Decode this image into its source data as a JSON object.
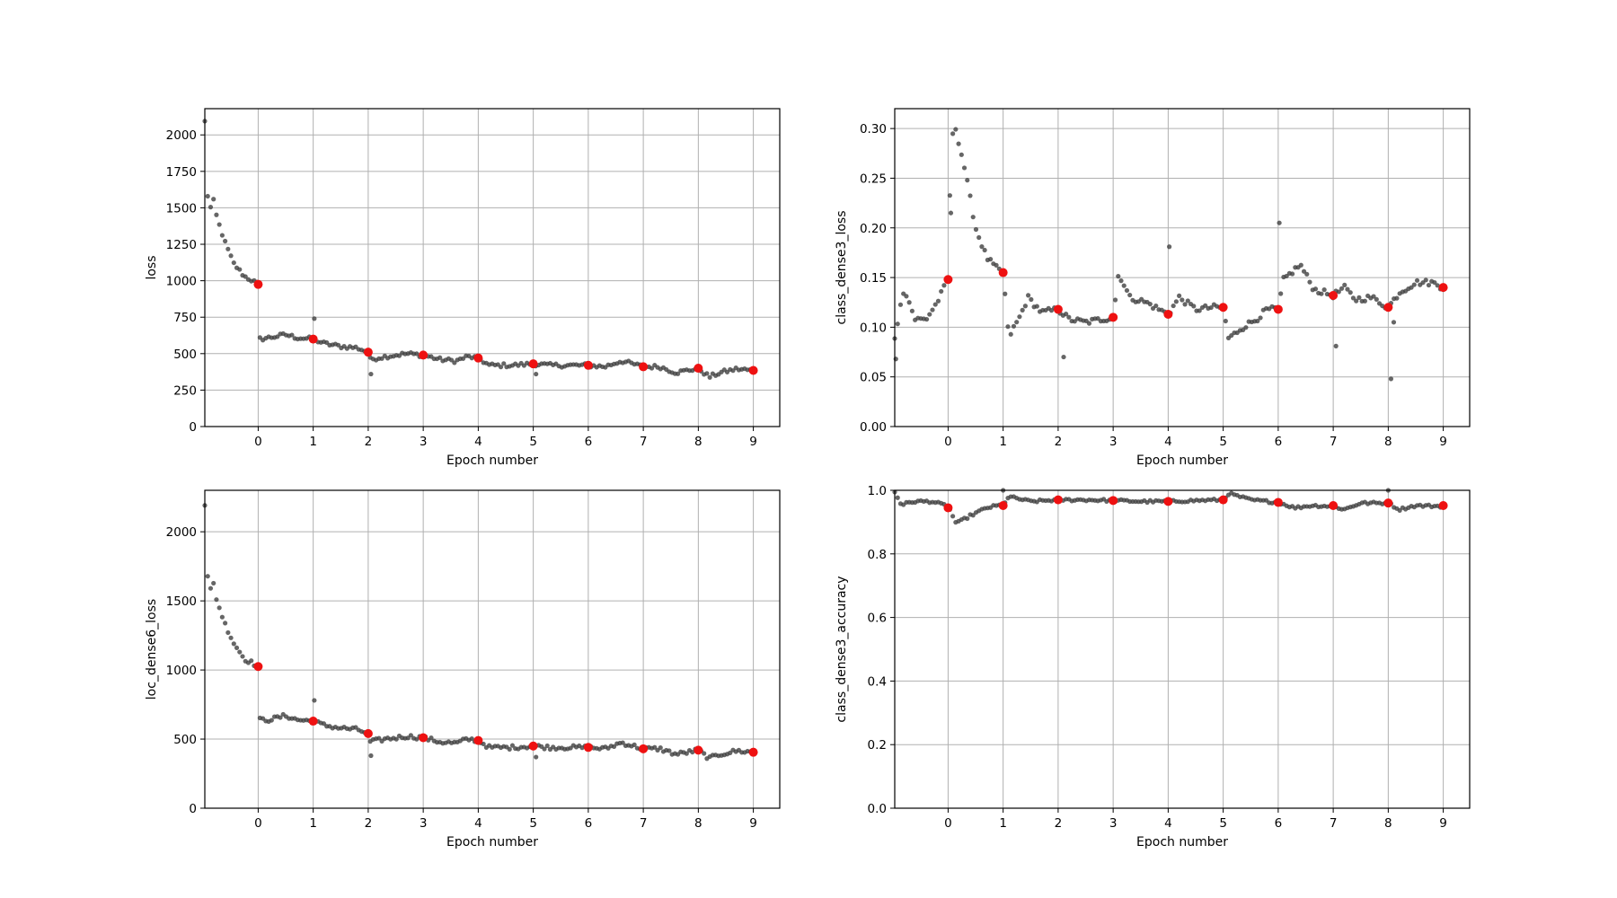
{
  "chart_data": [
    {
      "type": "scatter",
      "ylabel": "loss",
      "xlabel": "Epoch number",
      "xlim": [
        -0.97,
        9.48
      ],
      "ylim": [
        0,
        2180
      ],
      "xticks": [
        0,
        1,
        2,
        3,
        4,
        5,
        6,
        7,
        8,
        9
      ],
      "yticks": [
        0,
        250,
        500,
        750,
        1000,
        1250,
        1500,
        1750,
        2000
      ],
      "ytick_labels": [
        "0",
        "250",
        "500",
        "750",
        "1000",
        "1250",
        "1500",
        "1750",
        "2000"
      ],
      "grid": true,
      "series": [
        {
          "role": "per-batch values",
          "color": "#404040",
          "knots": [
            [
              -0.97,
              2090
            ],
            [
              -0.9,
              1420
            ],
            [
              -0.83,
              1580
            ],
            [
              -0.75,
              1430
            ],
            [
              -0.6,
              1260
            ],
            [
              -0.45,
              1120
            ],
            [
              -0.25,
              1030
            ],
            [
              -0.1,
              1000
            ],
            [
              0,
              975
            ],
            [
              0.02,
              600
            ],
            [
              0.2,
              610
            ],
            [
              0.5,
              630
            ],
            [
              0.7,
              610
            ],
            [
              1.0,
              600
            ],
            [
              1.2,
              570
            ],
            [
              1.5,
              550
            ],
            [
              1.8,
              540
            ],
            [
              2.0,
              510
            ],
            [
              2.02,
              460
            ],
            [
              2.3,
              480
            ],
            [
              2.7,
              500
            ],
            [
              3.0,
              490
            ],
            [
              3.3,
              460
            ],
            [
              3.6,
              450
            ],
            [
              3.8,
              480
            ],
            [
              4.0,
              470
            ],
            [
              4.2,
              420
            ],
            [
              4.6,
              420
            ],
            [
              5.0,
              430
            ],
            [
              5.3,
              420
            ],
            [
              5.6,
              420
            ],
            [
              6.0,
              420
            ],
            [
              6.3,
              410
            ],
            [
              6.6,
              450
            ],
            [
              7.0,
              410
            ],
            [
              7.3,
              410
            ],
            [
              7.6,
              370
            ],
            [
              8.0,
              400
            ],
            [
              8.2,
              340
            ],
            [
              8.4,
              370
            ],
            [
              8.7,
              395
            ],
            [
              9.0,
              385
            ]
          ],
          "noise": 14,
          "outliers": [
            [
              1.02,
              740
            ],
            [
              2.05,
              360
            ],
            [
              5.05,
              360
            ]
          ]
        },
        {
          "role": "epoch-end values",
          "color": "#ee1111",
          "x": [
            0,
            1,
            2,
            3,
            4,
            5,
            6,
            7,
            8,
            9
          ],
          "y": [
            975,
            600,
            510,
            490,
            470,
            430,
            420,
            410,
            400,
            385
          ]
        }
      ]
    },
    {
      "type": "scatter",
      "ylabel": "class_dense3_loss",
      "xlabel": "Epoch number",
      "xlim": [
        -0.97,
        9.48
      ],
      "ylim": [
        0,
        0.32
      ],
      "xticks": [
        0,
        1,
        2,
        3,
        4,
        5,
        6,
        7,
        8,
        9
      ],
      "yticks": [
        0,
        0.05,
        0.1,
        0.15,
        0.2,
        0.25,
        0.3
      ],
      "ytick_labels": [
        "0.00",
        "0.05",
        "0.10",
        "0.15",
        "0.20",
        "0.25",
        "0.30"
      ],
      "grid": true,
      "series": [
        {
          "role": "per-batch values",
          "color": "#404040",
          "knots": [
            [
              -0.97,
              0.09
            ],
            [
              -0.8,
              0.14
            ],
            [
              -0.6,
              0.108
            ],
            [
              -0.4,
              0.108
            ],
            [
              -0.2,
              0.125
            ],
            [
              0.0,
              0.148
            ],
            [
              0.05,
              0.28
            ],
            [
              0.12,
              0.305
            ],
            [
              0.3,
              0.26
            ],
            [
              0.5,
              0.2
            ],
            [
              0.7,
              0.17
            ],
            [
              0.9,
              0.158
            ],
            [
              1.0,
              0.155
            ],
            [
              1.1,
              0.09
            ],
            [
              1.3,
              0.11
            ],
            [
              1.45,
              0.13
            ],
            [
              1.7,
              0.115
            ],
            [
              2.0,
              0.118
            ],
            [
              2.2,
              0.108
            ],
            [
              2.5,
              0.105
            ],
            [
              2.8,
              0.108
            ],
            [
              3.0,
              0.11
            ],
            [
              3.1,
              0.155
            ],
            [
              3.3,
              0.13
            ],
            [
              3.6,
              0.125
            ],
            [
              4.0,
              0.113
            ],
            [
              4.2,
              0.13
            ],
            [
              4.5,
              0.118
            ],
            [
              4.8,
              0.12
            ],
            [
              5.0,
              0.12
            ],
            [
              5.1,
              0.088
            ],
            [
              5.3,
              0.098
            ],
            [
              5.6,
              0.108
            ],
            [
              5.8,
              0.118
            ],
            [
              6.0,
              0.118
            ],
            [
              6.1,
              0.148
            ],
            [
              6.4,
              0.163
            ],
            [
              6.65,
              0.138
            ],
            [
              7.0,
              0.132
            ],
            [
              7.2,
              0.14
            ],
            [
              7.4,
              0.128
            ],
            [
              7.7,
              0.13
            ],
            [
              8.0,
              0.12
            ],
            [
              8.2,
              0.135
            ],
            [
              8.5,
              0.145
            ],
            [
              8.8,
              0.145
            ],
            [
              9.0,
              0.14
            ]
          ],
          "noise": 0.003,
          "outliers": [
            [
              -0.95,
              0.068
            ],
            [
              0.05,
              0.215
            ],
            [
              2.1,
              0.07
            ],
            [
              4.02,
              0.181
            ],
            [
              6.02,
              0.205
            ],
            [
              7.05,
              0.081
            ],
            [
              8.05,
              0.048
            ],
            [
              8.1,
              0.105
            ]
          ]
        },
        {
          "role": "epoch-end values",
          "color": "#ee1111",
          "x": [
            0,
            1,
            2,
            3,
            4,
            5,
            6,
            7,
            8,
            9
          ],
          "y": [
            0.148,
            0.155,
            0.118,
            0.11,
            0.113,
            0.12,
            0.118,
            0.132,
            0.12,
            0.14
          ]
        }
      ]
    },
    {
      "type": "scatter",
      "ylabel": "loc_dense6_loss",
      "xlabel": "Epoch number",
      "xlim": [
        -0.97,
        9.48
      ],
      "ylim": [
        0,
        2300
      ],
      "xticks": [
        0,
        1,
        2,
        3,
        4,
        5,
        6,
        7,
        8,
        9
      ],
      "yticks": [
        0,
        500,
        1000,
        1500,
        2000
      ],
      "ytick_labels": [
        "0",
        "500",
        "1000",
        "1500",
        "2000"
      ],
      "grid": true,
      "series": [
        {
          "role": "per-batch values",
          "color": "#404040",
          "knots": [
            [
              -0.97,
              2200
            ],
            [
              -0.9,
              1500
            ],
            [
              -0.83,
              1660
            ],
            [
              -0.75,
              1500
            ],
            [
              -0.6,
              1330
            ],
            [
              -0.45,
              1200
            ],
            [
              -0.25,
              1080
            ],
            [
              -0.1,
              1050
            ],
            [
              0,
              1025
            ],
            [
              0.02,
              640
            ],
            [
              0.2,
              640
            ],
            [
              0.5,
              670
            ],
            [
              0.7,
              640
            ],
            [
              1.0,
              630
            ],
            [
              1.2,
              600
            ],
            [
              1.5,
              580
            ],
            [
              1.8,
              570
            ],
            [
              2.0,
              540
            ],
            [
              2.02,
              480
            ],
            [
              2.3,
              500
            ],
            [
              2.7,
              520
            ],
            [
              3.0,
              510
            ],
            [
              3.3,
              480
            ],
            [
              3.6,
              470
            ],
            [
              3.8,
              500
            ],
            [
              4.0,
              490
            ],
            [
              4.2,
              440
            ],
            [
              4.6,
              440
            ],
            [
              5.0,
              450
            ],
            [
              5.3,
              440
            ],
            [
              5.6,
              440
            ],
            [
              6.0,
              440
            ],
            [
              6.3,
              430
            ],
            [
              6.6,
              475
            ],
            [
              7.0,
              430
            ],
            [
              7.3,
              430
            ],
            [
              7.6,
              390
            ],
            [
              8.0,
              420
            ],
            [
              8.2,
              360
            ],
            [
              8.4,
              390
            ],
            [
              8.7,
              415
            ],
            [
              9.0,
              405
            ]
          ],
          "noise": 15,
          "outliers": [
            [
              1.02,
              780
            ],
            [
              2.05,
              380
            ],
            [
              5.05,
              370
            ]
          ]
        },
        {
          "role": "epoch-end values",
          "color": "#ee1111",
          "x": [
            0,
            1,
            2,
            3,
            4,
            5,
            6,
            7,
            8,
            9
          ],
          "y": [
            1025,
            630,
            540,
            510,
            490,
            450,
            440,
            430,
            420,
            405
          ]
        }
      ]
    },
    {
      "type": "scatter",
      "ylabel": "class_dense3_accuracy",
      "xlabel": "Epoch number",
      "xlim": [
        -0.97,
        9.48
      ],
      "ylim": [
        0,
        1.0
      ],
      "xticks": [
        0,
        1,
        2,
        3,
        4,
        5,
        6,
        7,
        8,
        9
      ],
      "yticks": [
        0,
        0.2,
        0.4,
        0.6,
        0.8,
        1.0
      ],
      "ytick_labels": [
        "0.0",
        "0.2",
        "0.4",
        "0.6",
        "0.8",
        "1.0"
      ],
      "grid": true,
      "series": [
        {
          "role": "per-batch values",
          "color": "#404040",
          "knots": [
            [
              -0.97,
              0.995
            ],
            [
              -0.85,
              0.955
            ],
            [
              -0.6,
              0.965
            ],
            [
              -0.3,
              0.965
            ],
            [
              0.0,
              0.95
            ],
            [
              0.15,
              0.895
            ],
            [
              0.4,
              0.92
            ],
            [
              0.7,
              0.945
            ],
            [
              1.0,
              0.955
            ],
            [
              1.1,
              0.98
            ],
            [
              1.5,
              0.965
            ],
            [
              2.0,
              0.97
            ],
            [
              2.5,
              0.97
            ],
            [
              3.0,
              0.968
            ],
            [
              3.5,
              0.965
            ],
            [
              4.0,
              0.965
            ],
            [
              4.5,
              0.968
            ],
            [
              5.0,
              0.97
            ],
            [
              5.1,
              0.99
            ],
            [
              5.5,
              0.97
            ],
            [
              6.0,
              0.962
            ],
            [
              6.3,
              0.945
            ],
            [
              6.6,
              0.952
            ],
            [
              7.0,
              0.95
            ],
            [
              7.2,
              0.94
            ],
            [
              7.5,
              0.96
            ],
            [
              8.0,
              0.96
            ],
            [
              8.2,
              0.94
            ],
            [
              8.5,
              0.952
            ],
            [
              9.0,
              0.95
            ]
          ],
          "noise": 0.004,
          "outliers": [
            [
              1.0,
              1.0
            ],
            [
              8.0,
              1.0
            ]
          ]
        },
        {
          "role": "epoch-end values",
          "color": "#ee1111",
          "x": [
            0,
            1,
            2,
            3,
            4,
            5,
            6,
            7,
            8,
            9
          ],
          "y": [
            0.945,
            0.952,
            0.97,
            0.968,
            0.965,
            0.97,
            0.962,
            0.952,
            0.96,
            0.952
          ]
        }
      ]
    }
  ]
}
